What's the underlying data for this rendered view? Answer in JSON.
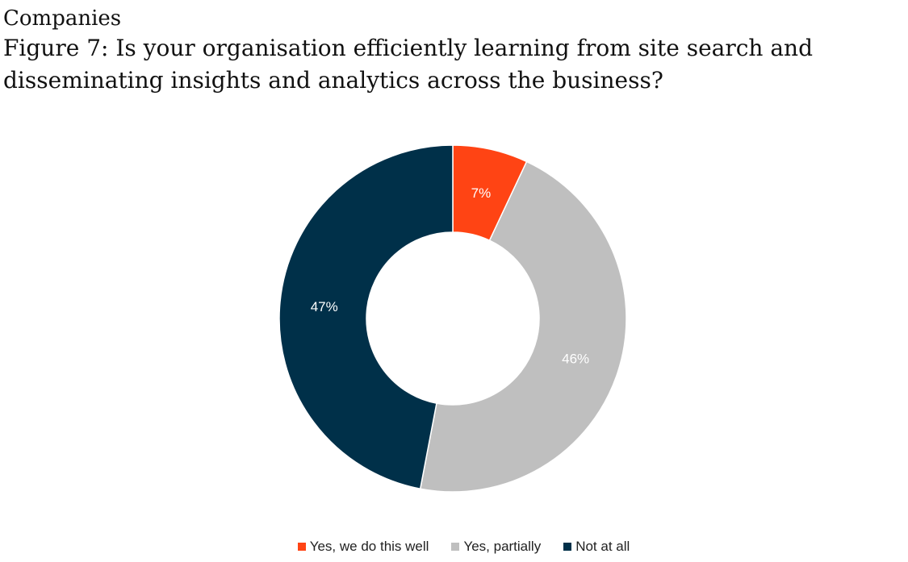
{
  "header": {
    "section": "Companies",
    "title": "Figure 7: Is your organisation efficiently learning from site search and disseminating insights and analytics across the business?"
  },
  "chart_data": {
    "type": "pie",
    "donut": true,
    "title": "",
    "slices": [
      {
        "name": "Yes, we do this well",
        "value": 7,
        "label": "7%",
        "color": "#ff4414"
      },
      {
        "name": "Yes, partially",
        "value": 46,
        "label": "46%",
        "color": "#bfbfbf"
      },
      {
        "name": "Not at all",
        "value": 47,
        "label": "47%",
        "color": "#003049"
      }
    ],
    "legend_position": "bottom",
    "start_angle": "12 o'clock, clockwise"
  }
}
